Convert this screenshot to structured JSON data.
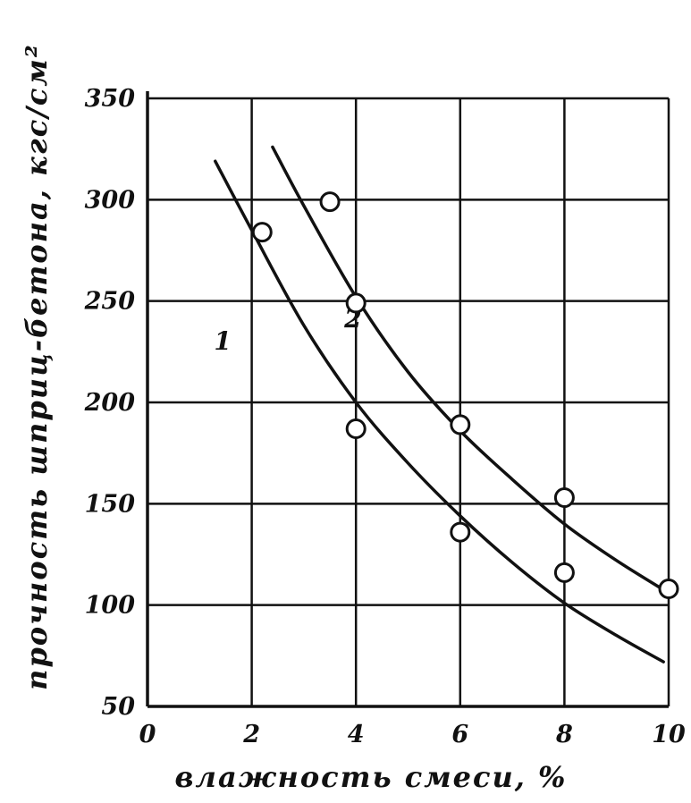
{
  "chart_data": {
    "type": "line",
    "title": "",
    "xlabel": "влажность смеси, %",
    "ylabel": "прочность шприц-бетона, кгс/см²",
    "xlim": [
      0,
      10
    ],
    "ylim": [
      50,
      350
    ],
    "x_ticks": [
      0,
      2,
      4,
      6,
      8,
      10
    ],
    "y_ticks": [
      50,
      100,
      150,
      200,
      250,
      300,
      350
    ],
    "x_tick_labels": [
      "0",
      "2",
      "4",
      "6",
      "8",
      "10"
    ],
    "y_tick_labels": [
      "50",
      "100",
      "150",
      "200",
      "250",
      "300",
      "350"
    ],
    "grid": true,
    "series": [
      {
        "name": "1",
        "curve": [
          [
            1.3,
            319
          ],
          [
            2,
            285
          ],
          [
            3,
            238
          ],
          [
            4,
            200
          ],
          [
            5,
            170
          ],
          [
            6,
            144
          ],
          [
            7,
            121
          ],
          [
            8,
            101
          ],
          [
            9,
            85
          ],
          [
            9.9,
            72
          ]
        ],
        "points": [
          [
            2.2,
            284
          ],
          [
            4.0,
            187
          ],
          [
            6.0,
            136
          ],
          [
            8.0,
            116
          ]
        ]
      },
      {
        "name": "2",
        "curve": [
          [
            2.4,
            326
          ],
          [
            3,
            297
          ],
          [
            4,
            252
          ],
          [
            5,
            215
          ],
          [
            6,
            186
          ],
          [
            7,
            162
          ],
          [
            8,
            140
          ],
          [
            9,
            122
          ],
          [
            10,
            106
          ]
        ],
        "points": [
          [
            3.5,
            299
          ],
          [
            4.0,
            249
          ],
          [
            6.0,
            189
          ],
          [
            8.0,
            153
          ],
          [
            10.0,
            108
          ]
        ]
      }
    ]
  }
}
